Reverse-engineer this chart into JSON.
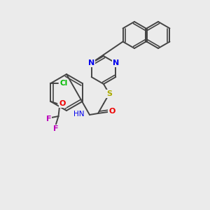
{
  "background_color": "#ebebeb",
  "bond_color": "#444444",
  "atom_colors": {
    "N": "#0000ee",
    "S": "#aaaa00",
    "O": "#ee0000",
    "Cl": "#00bb00",
    "F": "#bb00bb",
    "H": "#557777",
    "C": "#444444"
  },
  "figsize": [
    3.0,
    3.0
  ],
  "dpi": 100
}
